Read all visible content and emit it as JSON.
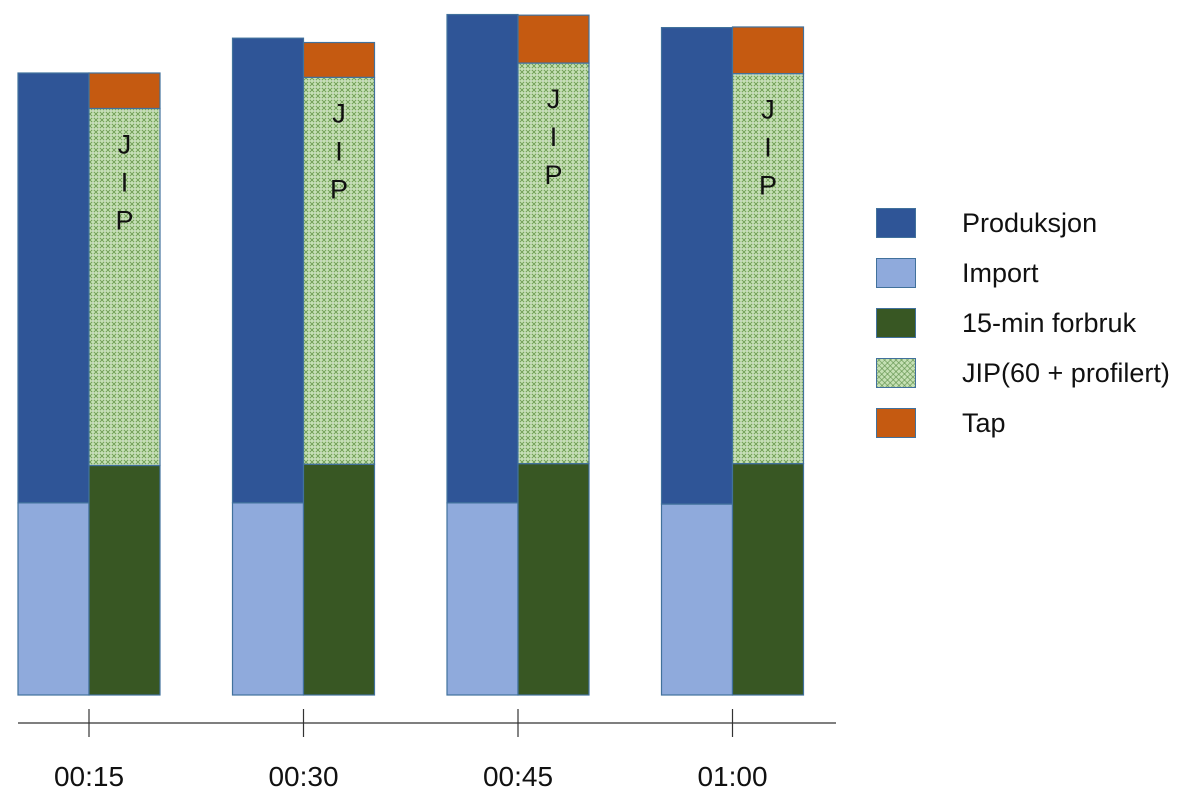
{
  "chart_data": {
    "type": "bar",
    "stacked": true,
    "layout": "paired stacked bars per time interval",
    "categories": [
      "00:15",
      "00:30",
      "00:45",
      "01:00"
    ],
    "bar_groups": [
      {
        "name": "supply",
        "segments": [
          "Produksjon",
          "Import"
        ]
      },
      {
        "name": "demand",
        "segments": [
          "15-min forbruk",
          "JIP(60 + profilert)",
          "Tap"
        ]
      }
    ],
    "series": [
      {
        "name": "Import",
        "group": "supply",
        "color": "#8faadc",
        "values": [
          30.9,
          30.9,
          30.9,
          30.7
        ]
      },
      {
        "name": "Produksjon",
        "group": "supply",
        "color": "#2f5597",
        "values": [
          69.1,
          74.7,
          78.5,
          76.6
        ]
      },
      {
        "name": "15-min forbruk",
        "group": "demand",
        "color": "#385723",
        "values": [
          36.9,
          37.1,
          37.2,
          37.2
        ]
      },
      {
        "name": "JIP(60 + profilert)",
        "group": "demand",
        "color": "#c5e0b4",
        "pattern": "crosshatch",
        "values": [
          57.4,
          62.2,
          64.4,
          62.7
        ]
      },
      {
        "name": "Tap",
        "group": "demand",
        "color": "#c55a11",
        "values": [
          5.7,
          5.6,
          7.7,
          7.5
        ]
      }
    ],
    "bar_labels": [
      "J",
      "I",
      "P"
    ],
    "legend": {
      "placement": "right",
      "items": [
        {
          "label": "Produksjon",
          "color": "#2f5597"
        },
        {
          "label": "Import",
          "color": "#8faadc"
        },
        {
          "label": "15-min forbruk",
          "color": "#385723"
        },
        {
          "label": "JIP(60 + profilert)",
          "color": "#c5e0b4",
          "pattern": "crosshatch"
        },
        {
          "label": "Tap",
          "color": "#c55a11"
        }
      ]
    },
    "ylim": [
      0,
      110
    ],
    "y_axis_visible": false,
    "grid": false,
    "title": "",
    "xlabel": "",
    "ylabel": ""
  }
}
